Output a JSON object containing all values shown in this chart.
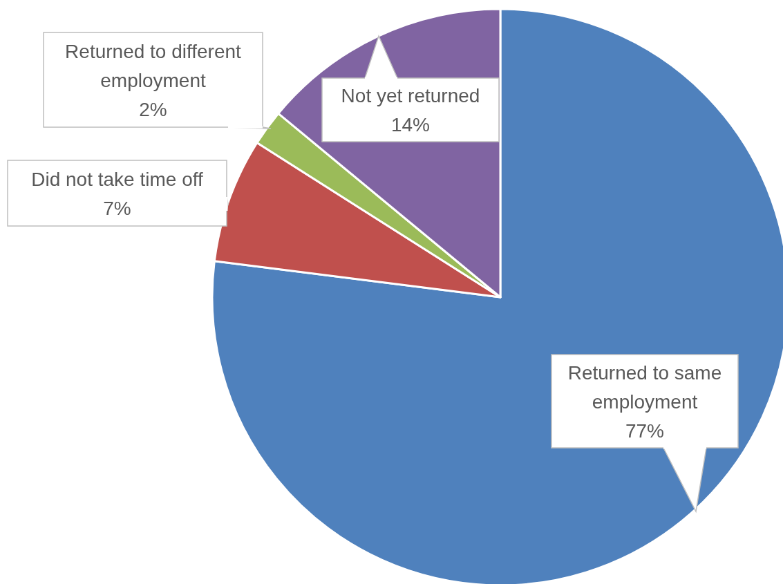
{
  "chart_data": {
    "type": "pie",
    "categories": [
      "Returned to same employment",
      "Did not take time off",
      "Returned to different employment",
      "Not yet returned"
    ],
    "values": [
      77,
      7,
      2,
      14
    ],
    "colors": [
      "#4f81bd",
      "#c0504d",
      "#9bbb59",
      "#8064a2"
    ],
    "value_labels": [
      "77%",
      "7%",
      "2%",
      "14%"
    ]
  }
}
